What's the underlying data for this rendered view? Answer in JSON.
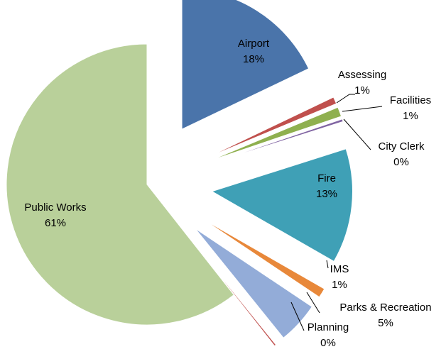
{
  "chart_data": {
    "type": "pie",
    "categories": [
      "Airport",
      "Assessing",
      "Facilities",
      "City Clerk",
      "Fire",
      "IMS",
      "Parks & Recreation",
      "Planning",
      "Public Works"
    ],
    "values": [
      17.9,
      0.8,
      1.1,
      0.3,
      13.2,
      1.1,
      4.8,
      0.2,
      60.6
    ],
    "value_labels": [
      "18%",
      "1%",
      "1%",
      "0%",
      "13%",
      "1%",
      "5%",
      "0%",
      "61%"
    ],
    "colors": [
      "#4a74aa",
      "#c0504d",
      "#8fb04f",
      "#8064a2",
      "#3fa0b6",
      "#e8883a",
      "#93acd8",
      "#c0504d",
      "#b9d09a"
    ]
  }
}
